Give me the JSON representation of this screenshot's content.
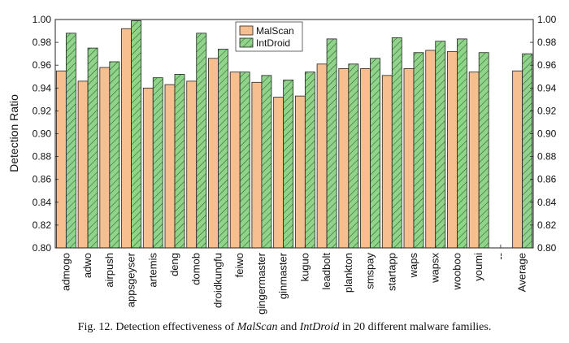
{
  "chart_data": {
    "type": "bar",
    "ylabel": "Detection Ratio",
    "xlabel": "",
    "ylim": [
      0.8,
      1.0
    ],
    "yticks": [
      0.8,
      0.82,
      0.84,
      0.86,
      0.88,
      0.9,
      0.92,
      0.94,
      0.96,
      0.98,
      1.0
    ],
    "ytick_labels": [
      "0.80",
      "0.82",
      "0.84",
      "0.86",
      "0.88",
      "0.90",
      "0.92",
      "0.94",
      "0.96",
      "0.98",
      "1.00"
    ],
    "right_axis": true,
    "grid": false,
    "legend_position": "top-center",
    "categories": [
      "admogo",
      "adwo",
      "airpush",
      "appsgeyser",
      "artemis",
      "deng",
      "domob",
      "droidkungfu",
      "feiwo",
      "gingermaster",
      "ginmaster",
      "kuguo",
      "leadbolt",
      "plankton",
      "smspay",
      "startapp",
      "waps",
      "wapsx",
      "wooboo",
      "youmi",
      "--",
      "Average"
    ],
    "series": [
      {
        "name": "MalScan",
        "color": "#f7be8f",
        "hatch": false,
        "values": [
          0.955,
          0.946,
          0.958,
          0.992,
          0.94,
          0.943,
          0.946,
          0.966,
          0.954,
          0.945,
          0.932,
          0.933,
          0.961,
          0.957,
          0.957,
          0.951,
          0.957,
          0.973,
          0.972,
          0.954,
          null,
          0.955
        ]
      },
      {
        "name": "IntDroid",
        "color": "#8fd48a",
        "hatch": true,
        "values": [
          0.988,
          0.975,
          0.963,
          0.999,
          0.949,
          0.952,
          0.988,
          0.974,
          0.954,
          0.951,
          0.947,
          0.954,
          0.983,
          0.961,
          0.966,
          0.984,
          0.971,
          0.981,
          0.983,
          0.971,
          null,
          0.97
        ]
      }
    ]
  },
  "caption": {
    "prefix": "Fig. 12.  Detection effectiveness of ",
    "name1": "MalScan",
    "mid": " and ",
    "name2": "IntDroid",
    "suffix": " in 20 different malware families."
  }
}
